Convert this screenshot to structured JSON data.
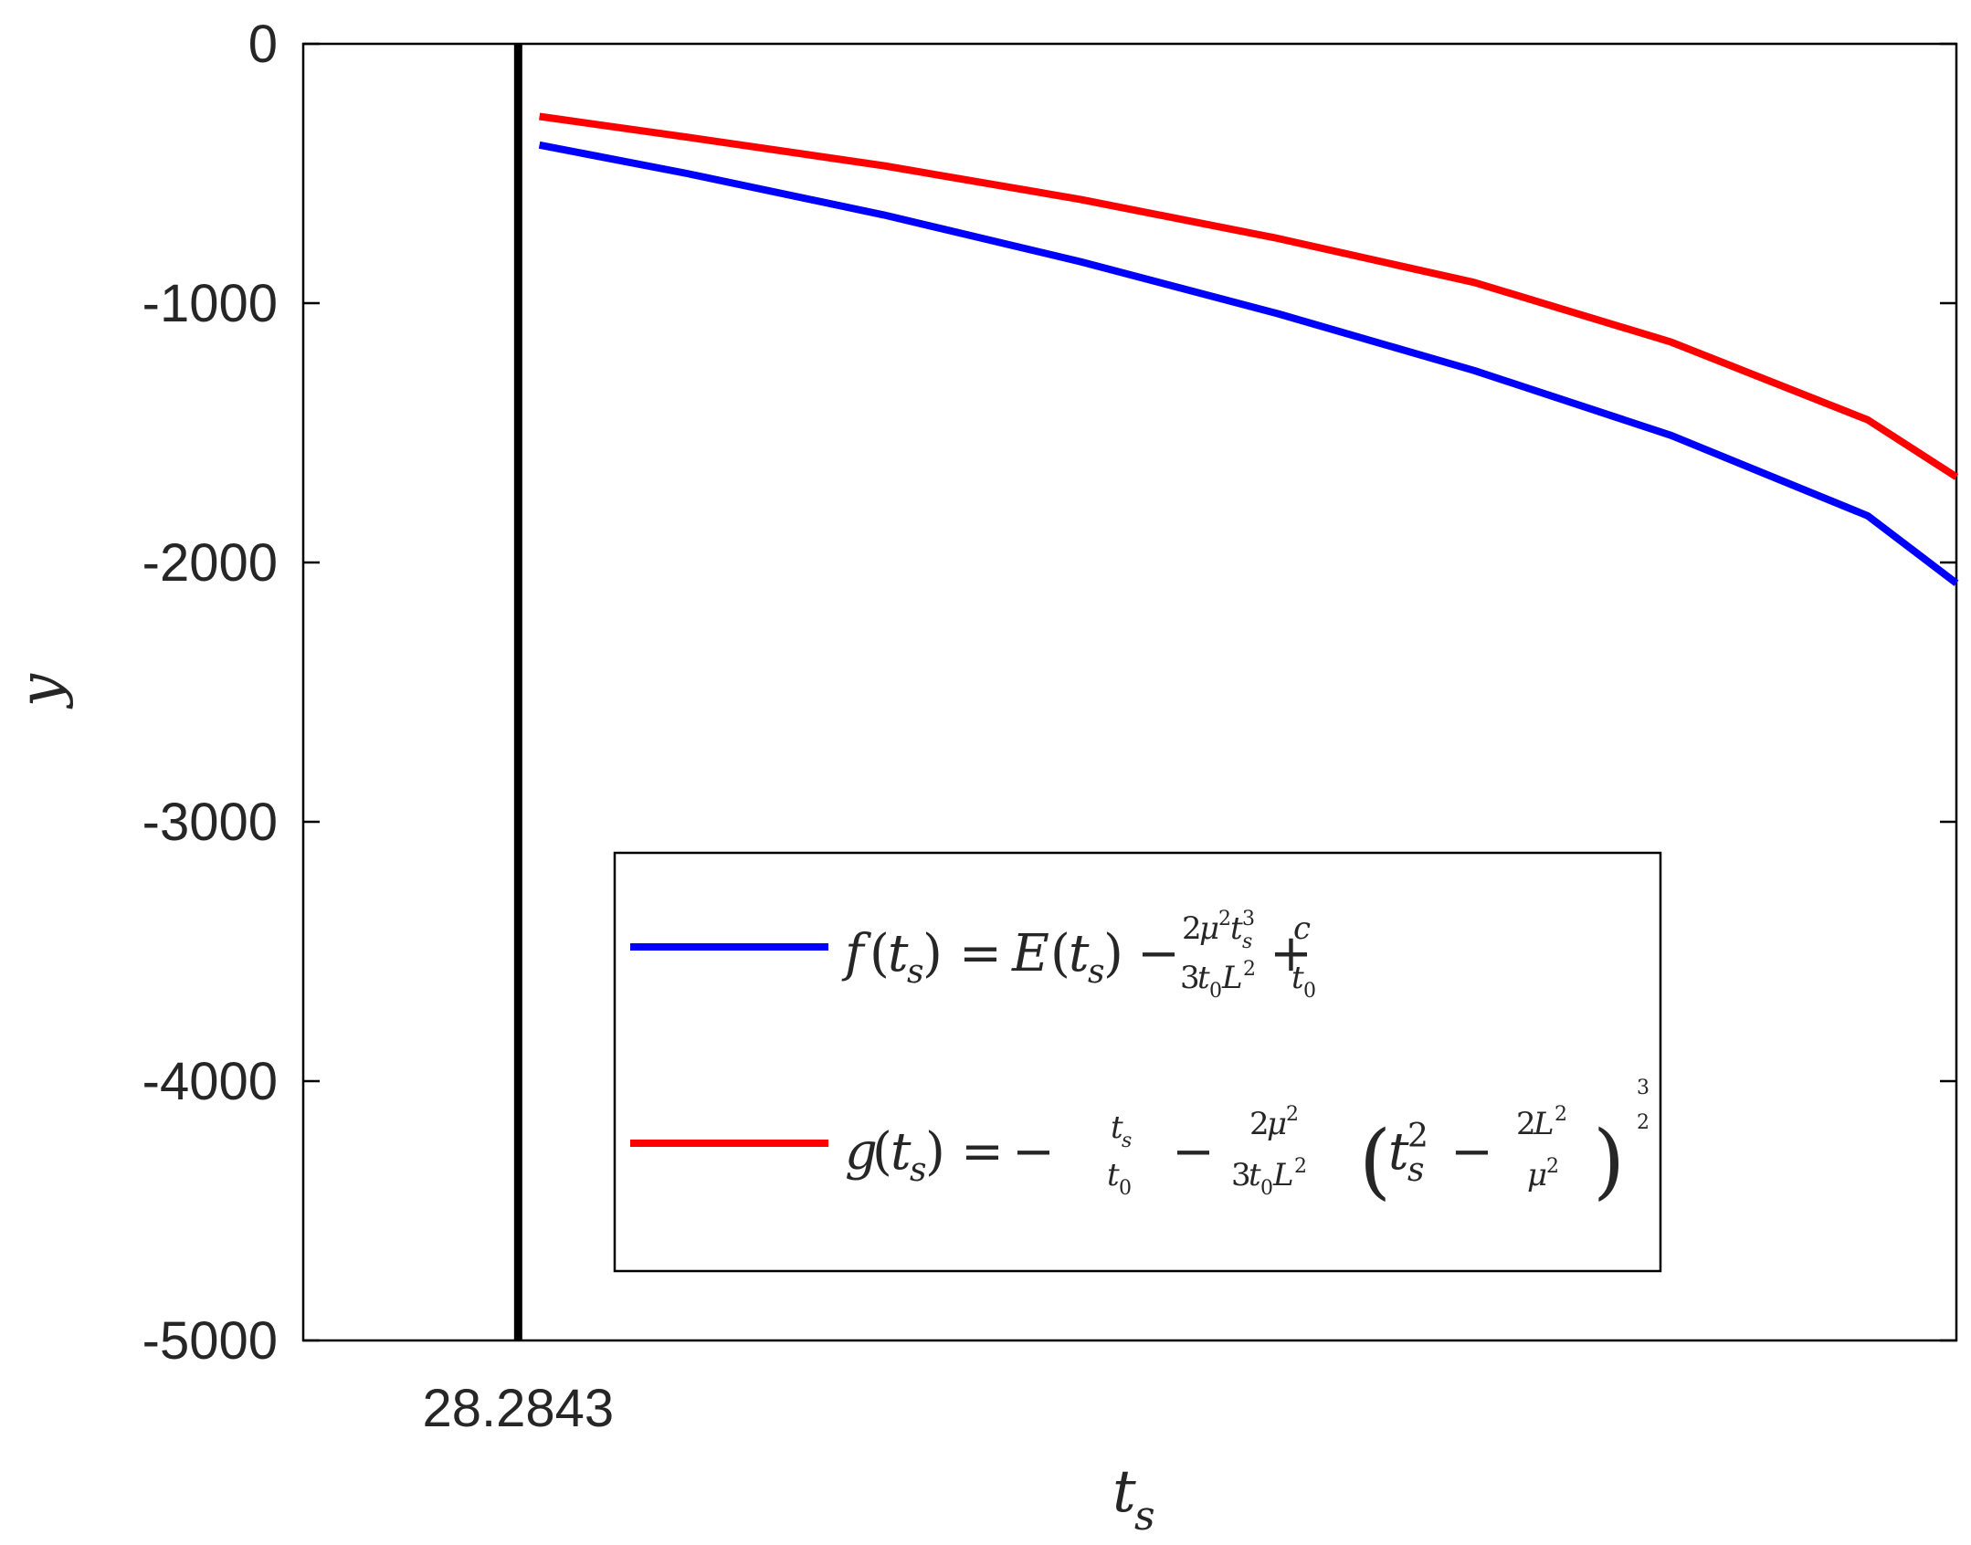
{
  "chart_data": {
    "type": "line",
    "title": "",
    "xlabel": "t_s",
    "ylabel": "y",
    "ylim": [
      -5000,
      0
    ],
    "xlim": [
      26.1,
      42.9
    ],
    "yticks": [
      "0",
      "-1000",
      "-2000",
      "-3000",
      "-4000",
      "-5000"
    ],
    "xtick_label": "28.2843",
    "vertical_line": {
      "x": 28.2843,
      "color": "#000000"
    },
    "legend_position": "lower-right",
    "series": [
      {
        "name": "f(t_s) = E(t_s) − 2μ²t_s³/(3t₀L²) + c/t₀",
        "color": "#0000ff",
        "x": [
          28.5,
          30,
          32,
          34,
          36,
          38,
          40,
          42,
          42.9
        ],
        "y": [
          -390,
          -500,
          -660,
          -840,
          -1040,
          -1260,
          -1510,
          -1820,
          -2080
        ]
      },
      {
        "name": "g(t_s) = −t_s/t₀ − 2μ²/(3t₀L²) (t_s² − 2L²/μ²)^(3/2)",
        "color": "#ff0000",
        "x": [
          28.5,
          30,
          32,
          34,
          36,
          38,
          40,
          42,
          42.9
        ],
        "y": [
          -280,
          -360,
          -470,
          -600,
          -750,
          -920,
          -1150,
          -1450,
          -1670
        ]
      }
    ]
  }
}
